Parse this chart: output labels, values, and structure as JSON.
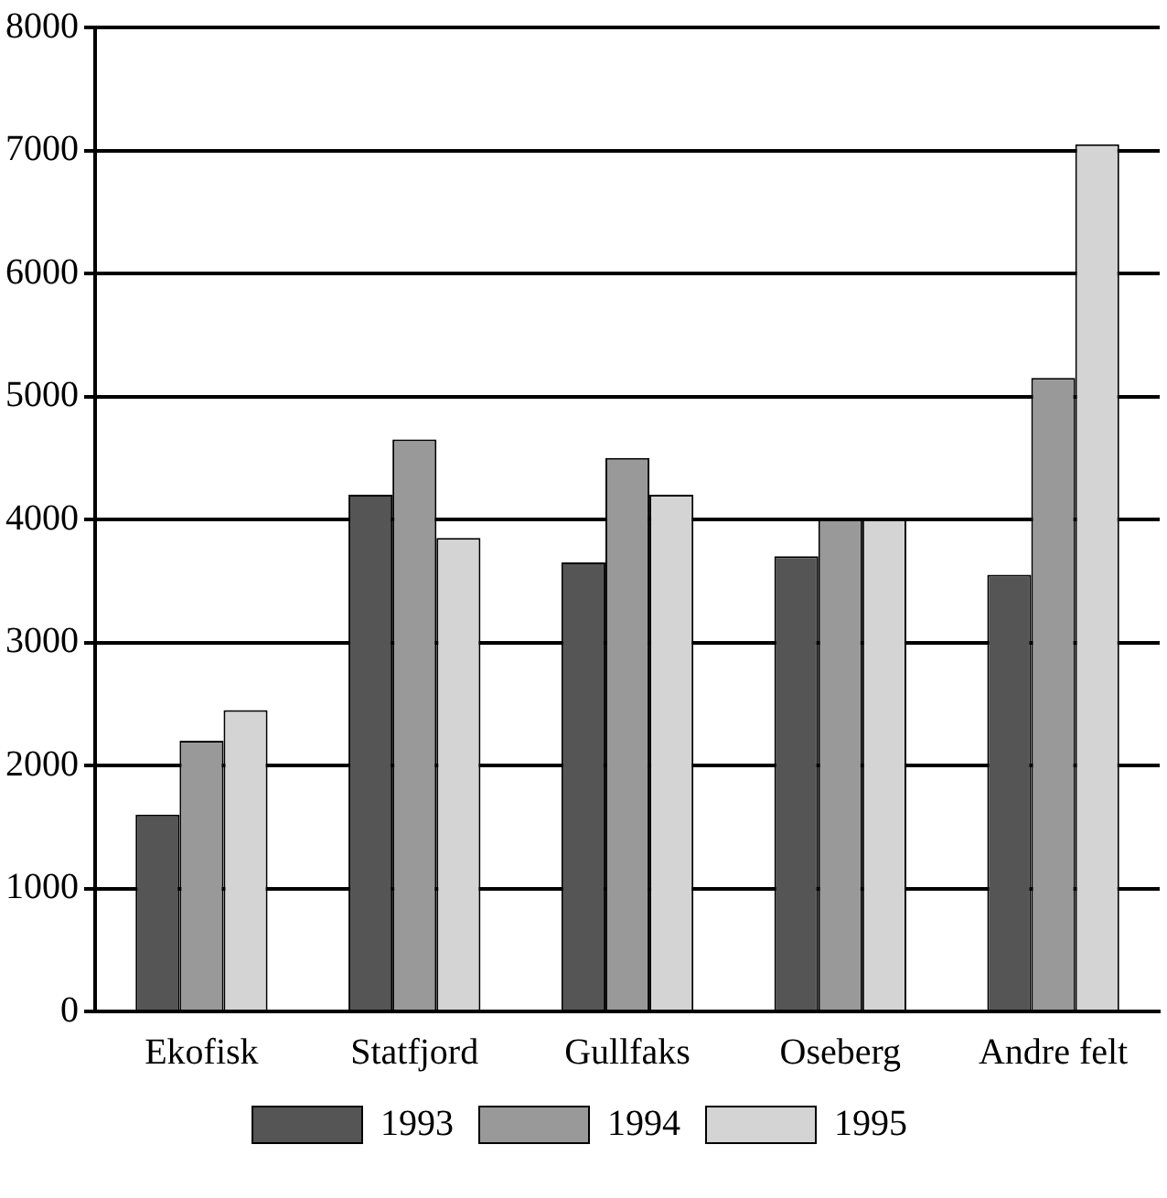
{
  "chart_data": {
    "type": "bar",
    "categories": [
      "Ekofisk",
      "Statfjord",
      "Gullfaks",
      "Oseberg",
      "Andre felt"
    ],
    "series": [
      {
        "name": "1993",
        "color": "#555555",
        "values": [
          1600,
          4200,
          3650,
          3700,
          3550
        ]
      },
      {
        "name": "1994",
        "color": "#999999",
        "values": [
          2200,
          4650,
          4500,
          4000,
          5150
        ]
      },
      {
        "name": "1995",
        "color": "#d4d4d4",
        "values": [
          2450,
          3850,
          4200,
          4000,
          7050
        ]
      }
    ],
    "ylim": [
      0,
      8000
    ],
    "yticks": [
      0,
      1000,
      2000,
      3000,
      4000,
      5000,
      6000,
      7000,
      8000
    ],
    "grid": "y",
    "legend": "bottom"
  }
}
